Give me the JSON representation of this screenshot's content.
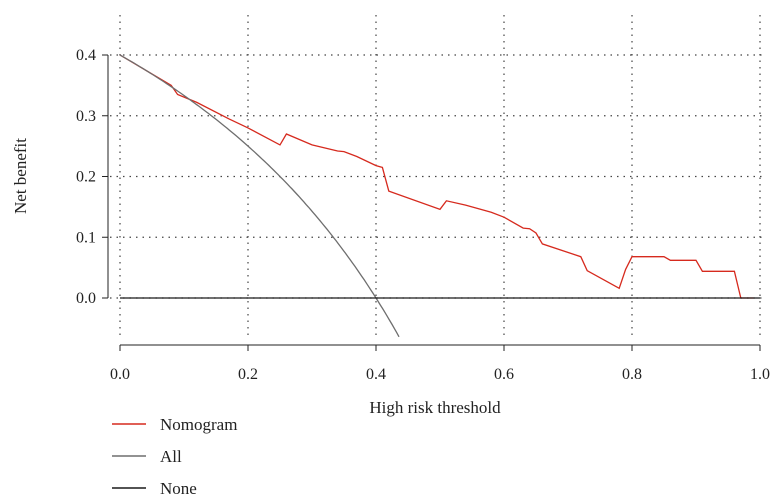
{
  "chart_data": {
    "type": "line",
    "title": "",
    "xlabel": "High risk threshold",
    "ylabel": "Net benefit",
    "xlim": [
      0,
      1
    ],
    "ylim": [
      -0.07,
      0.43
    ],
    "x_ticks": [
      0.0,
      0.2,
      0.4,
      0.6,
      0.8,
      1.0
    ],
    "x_tick_labels": [
      "0.0",
      "0.2",
      "0.4",
      "0.6",
      "0.8",
      "1.0"
    ],
    "y_ticks": [
      0.0,
      0.1,
      0.2,
      0.3,
      0.4
    ],
    "y_tick_labels": [
      "0.0",
      "0.1",
      "0.2",
      "0.3",
      "0.4"
    ],
    "grid": true,
    "legend_position": "bottom-left",
    "series": [
      {
        "name": "Nomogram",
        "color": "#d62a1e",
        "x": [
          0.0,
          0.04,
          0.08,
          0.09,
          0.12,
          0.17,
          0.2,
          0.25,
          0.26,
          0.3,
          0.34,
          0.35,
          0.37,
          0.4,
          0.41,
          0.42,
          0.5,
          0.51,
          0.54,
          0.58,
          0.6,
          0.63,
          0.64,
          0.65,
          0.66,
          0.72,
          0.73,
          0.78,
          0.79,
          0.8,
          0.81,
          0.82,
          0.84,
          0.85,
          0.86,
          0.88,
          0.9,
          0.91,
          0.92,
          0.95,
          0.96,
          0.97,
          0.98,
          0.99
        ],
        "y": [
          0.4,
          0.375,
          0.35,
          0.335,
          0.322,
          0.295,
          0.28,
          0.252,
          0.27,
          0.252,
          0.242,
          0.241,
          0.233,
          0.218,
          0.215,
          0.176,
          0.146,
          0.16,
          0.153,
          0.141,
          0.133,
          0.115,
          0.114,
          0.107,
          0.089,
          0.068,
          0.045,
          0.016,
          0.047,
          0.068,
          0.068,
          0.068,
          0.068,
          0.068,
          0.062,
          0.062,
          0.062,
          0.044,
          0.044,
          0.044,
          0.044,
          0.0,
          0.0,
          0.0
        ]
      },
      {
        "name": "All",
        "color": "#6e6e6e",
        "prevalence": 0.4,
        "x_range": [
          0.0,
          0.436
        ]
      },
      {
        "name": "None",
        "color": "#1a1a1a",
        "x": [
          0.0,
          1.0
        ],
        "y": [
          0.0,
          0.0
        ]
      }
    ]
  }
}
